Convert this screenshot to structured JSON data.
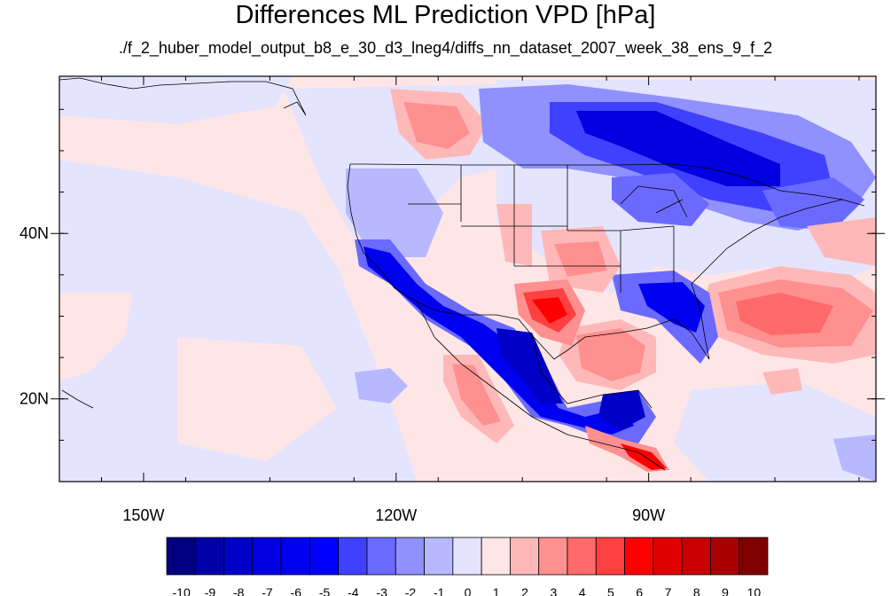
{
  "title": "Differences ML Prediction VPD [hPa]",
  "subtitle": "./f_2_huber_model_output_b8_e_30_d3_lneg4/diffs_nn_dataset_2007_week_38_ens_9_f_2",
  "map": {
    "lon_range": [
      -160,
      -63
    ],
    "lat_range": [
      10,
      59
    ],
    "lat_ticks": [
      {
        "value": 40,
        "label": "40N"
      },
      {
        "value": 20,
        "label": "20N"
      }
    ],
    "lon_ticks": [
      {
        "value": -150,
        "label": "150W"
      },
      {
        "value": -120,
        "label": "120W"
      },
      {
        "value": -90,
        "label": "90W"
      }
    ],
    "background_value": 0.5
  },
  "colorbar": {
    "labels": [
      "-10",
      "-9",
      "-8",
      "-7",
      "-6",
      "-5",
      "-4",
      "-3",
      "-2",
      "-1",
      "0",
      "1",
      "2",
      "3",
      "4",
      "5",
      "6",
      "7",
      "8",
      "9",
      "10"
    ],
    "colors": [
      "#000080",
      "#0000a8",
      "#0000c8",
      "#0000e0",
      "#0000f0",
      "#0000ff",
      "#4040ff",
      "#6a6aff",
      "#9090ff",
      "#b8b8ff",
      "#e4e4ff",
      "#ffe6e6",
      "#ffb8b8",
      "#ff9090",
      "#ff6a6a",
      "#ff4040",
      "#ff0000",
      "#e00000",
      "#c80000",
      "#a80000",
      "#800000"
    ]
  }
}
